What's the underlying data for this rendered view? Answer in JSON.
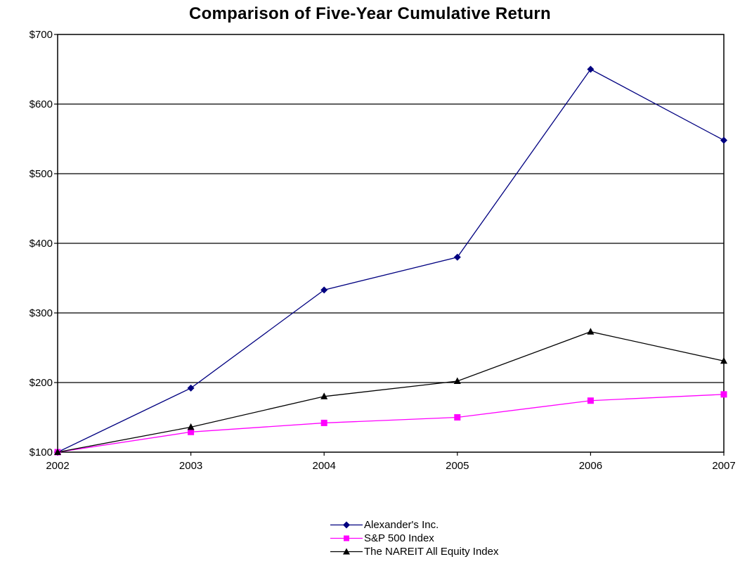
{
  "chart_data": {
    "type": "line",
    "title": "Comparison of Five-Year Cumulative Return",
    "categories": [
      "2002",
      "2003",
      "2004",
      "2005",
      "2006",
      "2007"
    ],
    "y_ticks": [
      "$100",
      "$200",
      "$300",
      "$400",
      "$500",
      "$600",
      "$700"
    ],
    "ylim": [
      100,
      700
    ],
    "grid": "horizontal",
    "legend_position": "bottom-center",
    "series": [
      {
        "name": "Alexander's Inc.",
        "values": [
          100,
          192,
          333,
          380,
          650,
          548
        ],
        "color": "#000080",
        "marker": "diamond"
      },
      {
        "name": "S&P 500 Index",
        "values": [
          100,
          129,
          142,
          150,
          174,
          183
        ],
        "color": "#ff00ff",
        "marker": "square"
      },
      {
        "name": "The NAREIT All Equity Index",
        "values": [
          100,
          136,
          180,
          202,
          273,
          231
        ],
        "color": "#000000",
        "marker": "triangle"
      }
    ]
  }
}
